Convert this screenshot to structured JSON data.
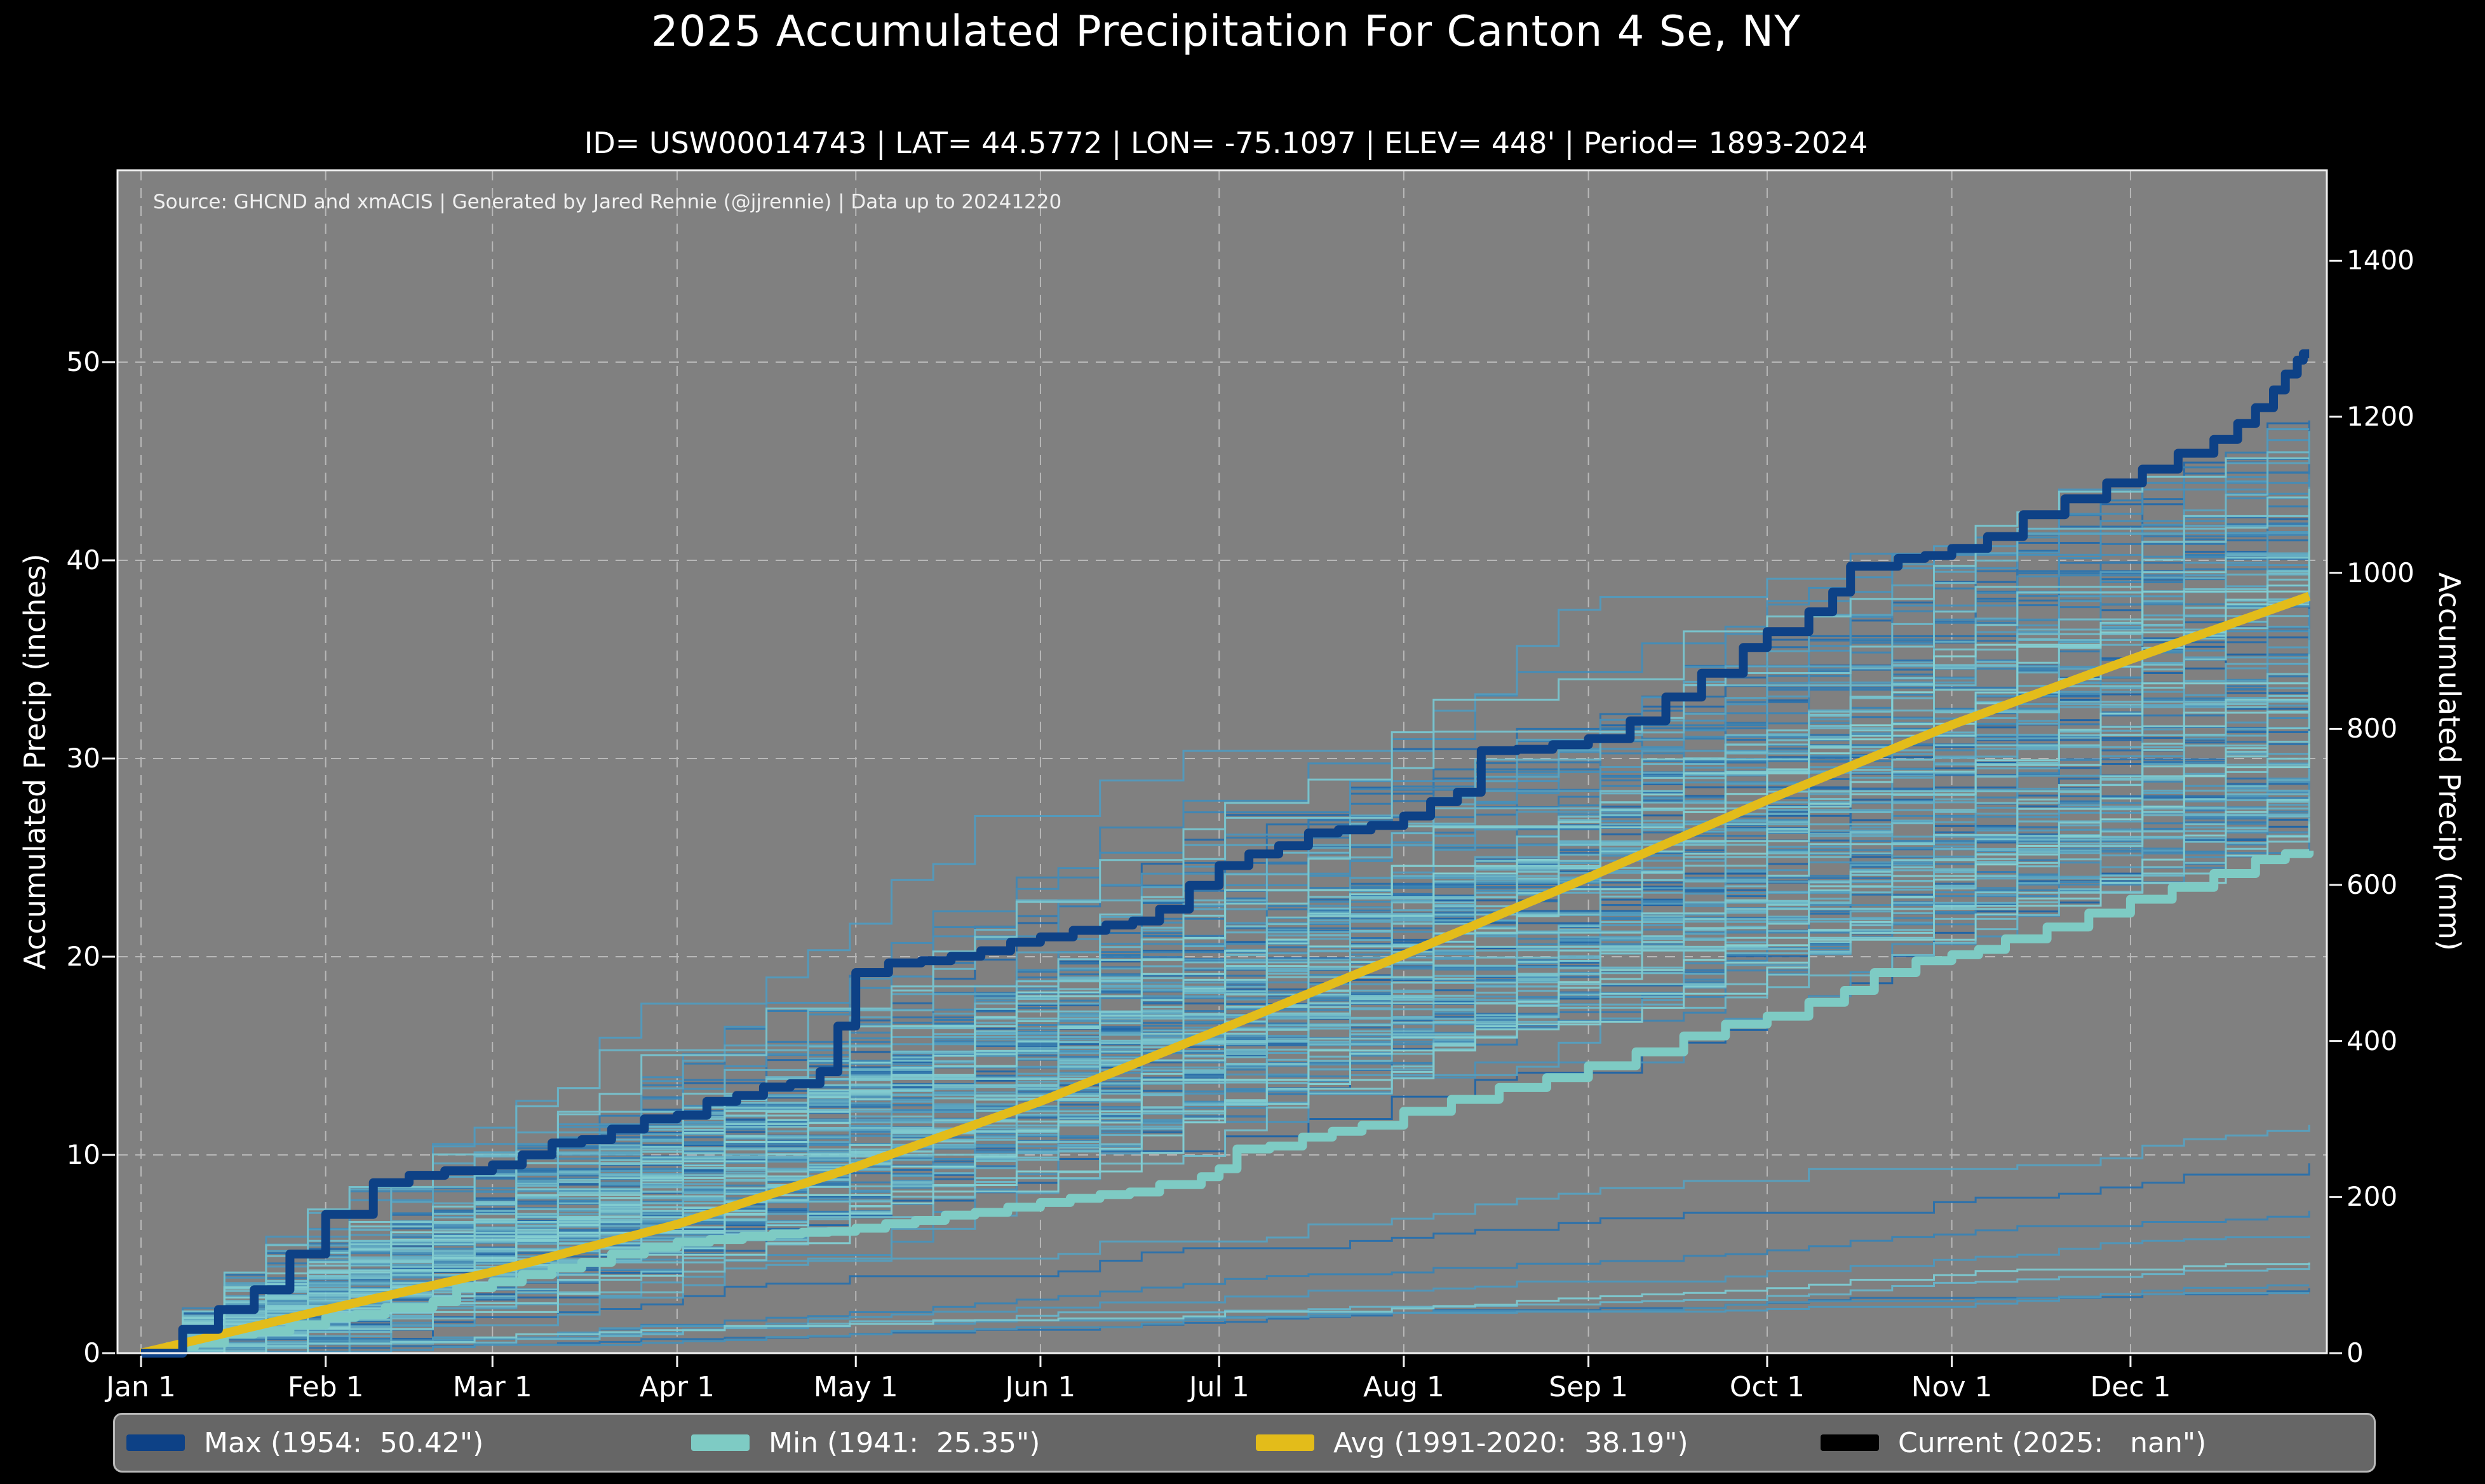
{
  "chart_data": {
    "type": "line",
    "title": "2025 Accumulated Precipitation For Canton 4 Se, NY",
    "subtitle": "ID= USW00014743 | LAT= 44.5772 | LON= -75.1097 | ELEV= 448' | Period= 1893-2024",
    "source_note": "Source: GHCND and xmACIS | Generated by Jared Rennie (@jjrennie) | Data up to 20241220",
    "plot_background": "#808080",
    "grid": {
      "visible": true,
      "style": "dashed",
      "color": "#d6d6d6",
      "opacity": 0.65
    },
    "spine_color": "#f2f2f2",
    "x_axis": {
      "tick_labels": [
        "Jan 1",
        "Feb 1",
        "Mar 1",
        "Apr 1",
        "May 1",
        "Jun 1",
        "Jul 1",
        "Aug 1",
        "Sep 1",
        "Oct 1",
        "Nov 1",
        "Dec 1"
      ],
      "tick_days": [
        1,
        32,
        60,
        91,
        121,
        152,
        182,
        213,
        244,
        274,
        305,
        335
      ]
    },
    "y_left": {
      "label": "Accumulated Precip (inches)",
      "ticks": [
        0,
        10,
        20,
        30,
        40,
        50
      ],
      "grid_values": [
        10,
        20,
        30,
        40,
        50
      ],
      "range": [
        0,
        59.7
      ]
    },
    "y_right": {
      "label": "Accumulated Precip (mm)",
      "ticks": [
        0,
        200,
        400,
        600,
        800,
        1000,
        1200,
        1400
      ],
      "range": [
        0,
        1516
      ]
    },
    "legend_position": "bottom",
    "series": [
      {
        "id": "max",
        "legend_label": "Max (1954:  50.42\")",
        "color": "#0d4186",
        "style": "step",
        "width": 14,
        "points": [
          [
            1,
            0
          ],
          [
            8,
            1.2
          ],
          [
            14,
            2.2
          ],
          [
            20,
            3.2
          ],
          [
            26,
            5.0
          ],
          [
            32,
            7.0
          ],
          [
            40,
            8.6
          ],
          [
            52,
            9.2
          ],
          [
            60,
            9.5
          ],
          [
            70,
            10.6
          ],
          [
            80,
            11.3
          ],
          [
            91,
            12.0
          ],
          [
            101,
            13.0
          ],
          [
            110,
            13.6
          ],
          [
            115,
            14.2
          ],
          [
            118,
            16.5
          ],
          [
            121,
            19.2
          ],
          [
            132,
            19.8
          ],
          [
            142,
            20.3
          ],
          [
            152,
            21.0
          ],
          [
            163,
            21.6
          ],
          [
            172,
            22.4
          ],
          [
            177,
            23.6
          ],
          [
            182,
            24.6
          ],
          [
            192,
            25.6
          ],
          [
            202,
            26.4
          ],
          [
            213,
            27.1
          ],
          [
            222,
            28.3
          ],
          [
            226,
            30.4
          ],
          [
            238,
            30.7
          ],
          [
            244,
            31.0
          ],
          [
            251,
            31.9
          ],
          [
            257,
            33.1
          ],
          [
            263,
            34.3
          ],
          [
            270,
            35.6
          ],
          [
            274,
            36.4
          ],
          [
            281,
            37.4
          ],
          [
            285,
            38.4
          ],
          [
            288,
            39.7
          ],
          [
            296,
            40.1
          ],
          [
            305,
            40.6
          ],
          [
            311,
            41.2
          ],
          [
            317,
            42.3
          ],
          [
            324,
            43.1
          ],
          [
            331,
            43.9
          ],
          [
            337,
            44.6
          ],
          [
            343,
            45.4
          ],
          [
            349,
            46.1
          ],
          [
            353,
            46.9
          ],
          [
            356,
            47.7
          ],
          [
            359,
            48.6
          ],
          [
            361,
            49.4
          ],
          [
            363,
            50.1
          ],
          [
            364,
            50.42
          ],
          [
            365,
            50.42
          ]
        ]
      },
      {
        "id": "min",
        "legend_label": "Min (1941:  25.35\")",
        "color": "#7ecbc4",
        "style": "step",
        "width": 14,
        "points": [
          [
            1,
            0
          ],
          [
            10,
            0.5
          ],
          [
            20,
            1.1
          ],
          [
            32,
            1.8
          ],
          [
            42,
            2.3
          ],
          [
            50,
            2.6
          ],
          [
            54,
            3.3
          ],
          [
            60,
            3.6
          ],
          [
            70,
            4.3
          ],
          [
            80,
            5.0
          ],
          [
            91,
            5.6
          ],
          [
            102,
            5.9
          ],
          [
            112,
            6.1
          ],
          [
            121,
            6.3
          ],
          [
            131,
            6.7
          ],
          [
            141,
            7.1
          ],
          [
            152,
            7.6
          ],
          [
            162,
            8.0
          ],
          [
            172,
            8.5
          ],
          [
            179,
            8.9
          ],
          [
            182,
            9.3
          ],
          [
            185,
            10.3
          ],
          [
            196,
            10.9
          ],
          [
            206,
            11.5
          ],
          [
            213,
            12.2
          ],
          [
            221,
            12.8
          ],
          [
            229,
            13.4
          ],
          [
            237,
            13.9
          ],
          [
            244,
            14.5
          ],
          [
            252,
            15.2
          ],
          [
            260,
            16.0
          ],
          [
            267,
            16.6
          ],
          [
            274,
            17.0
          ],
          [
            281,
            17.7
          ],
          [
            287,
            18.3
          ],
          [
            292,
            19.2
          ],
          [
            299,
            19.8
          ],
          [
            305,
            20.1
          ],
          [
            314,
            20.9
          ],
          [
            321,
            21.5
          ],
          [
            328,
            22.2
          ],
          [
            335,
            22.9
          ],
          [
            342,
            23.5
          ],
          [
            349,
            24.2
          ],
          [
            356,
            24.9
          ],
          [
            361,
            25.2
          ],
          [
            365,
            25.35
          ]
        ]
      },
      {
        "id": "avg",
        "legend_label": "Avg (1991-2020:  38.19\")",
        "color": "#e3bc1a",
        "style": "linear",
        "width": 14,
        "points": [
          [
            1,
            0
          ],
          [
            32,
            2.2
          ],
          [
            60,
            4.1
          ],
          [
            91,
            6.5
          ],
          [
            121,
            9.4
          ],
          [
            152,
            12.7
          ],
          [
            182,
            16.3
          ],
          [
            213,
            20.1
          ],
          [
            244,
            24.0
          ],
          [
            274,
            27.9
          ],
          [
            305,
            31.7
          ],
          [
            335,
            35.0
          ],
          [
            365,
            38.19
          ]
        ]
      },
      {
        "id": "current",
        "legend_label": "Current (2025:   nan\")",
        "color": "#000000",
        "style": "step",
        "width": 14,
        "points": []
      }
    ],
    "background_years": {
      "count": 128,
      "period_label": "1893-2024",
      "color_start": "#1a62a8",
      "color_end": "#86d6d8",
      "line_width": 3,
      "opacity": 0.92,
      "min_total_in": 25.35,
      "max_total_in": 50.42
    }
  }
}
